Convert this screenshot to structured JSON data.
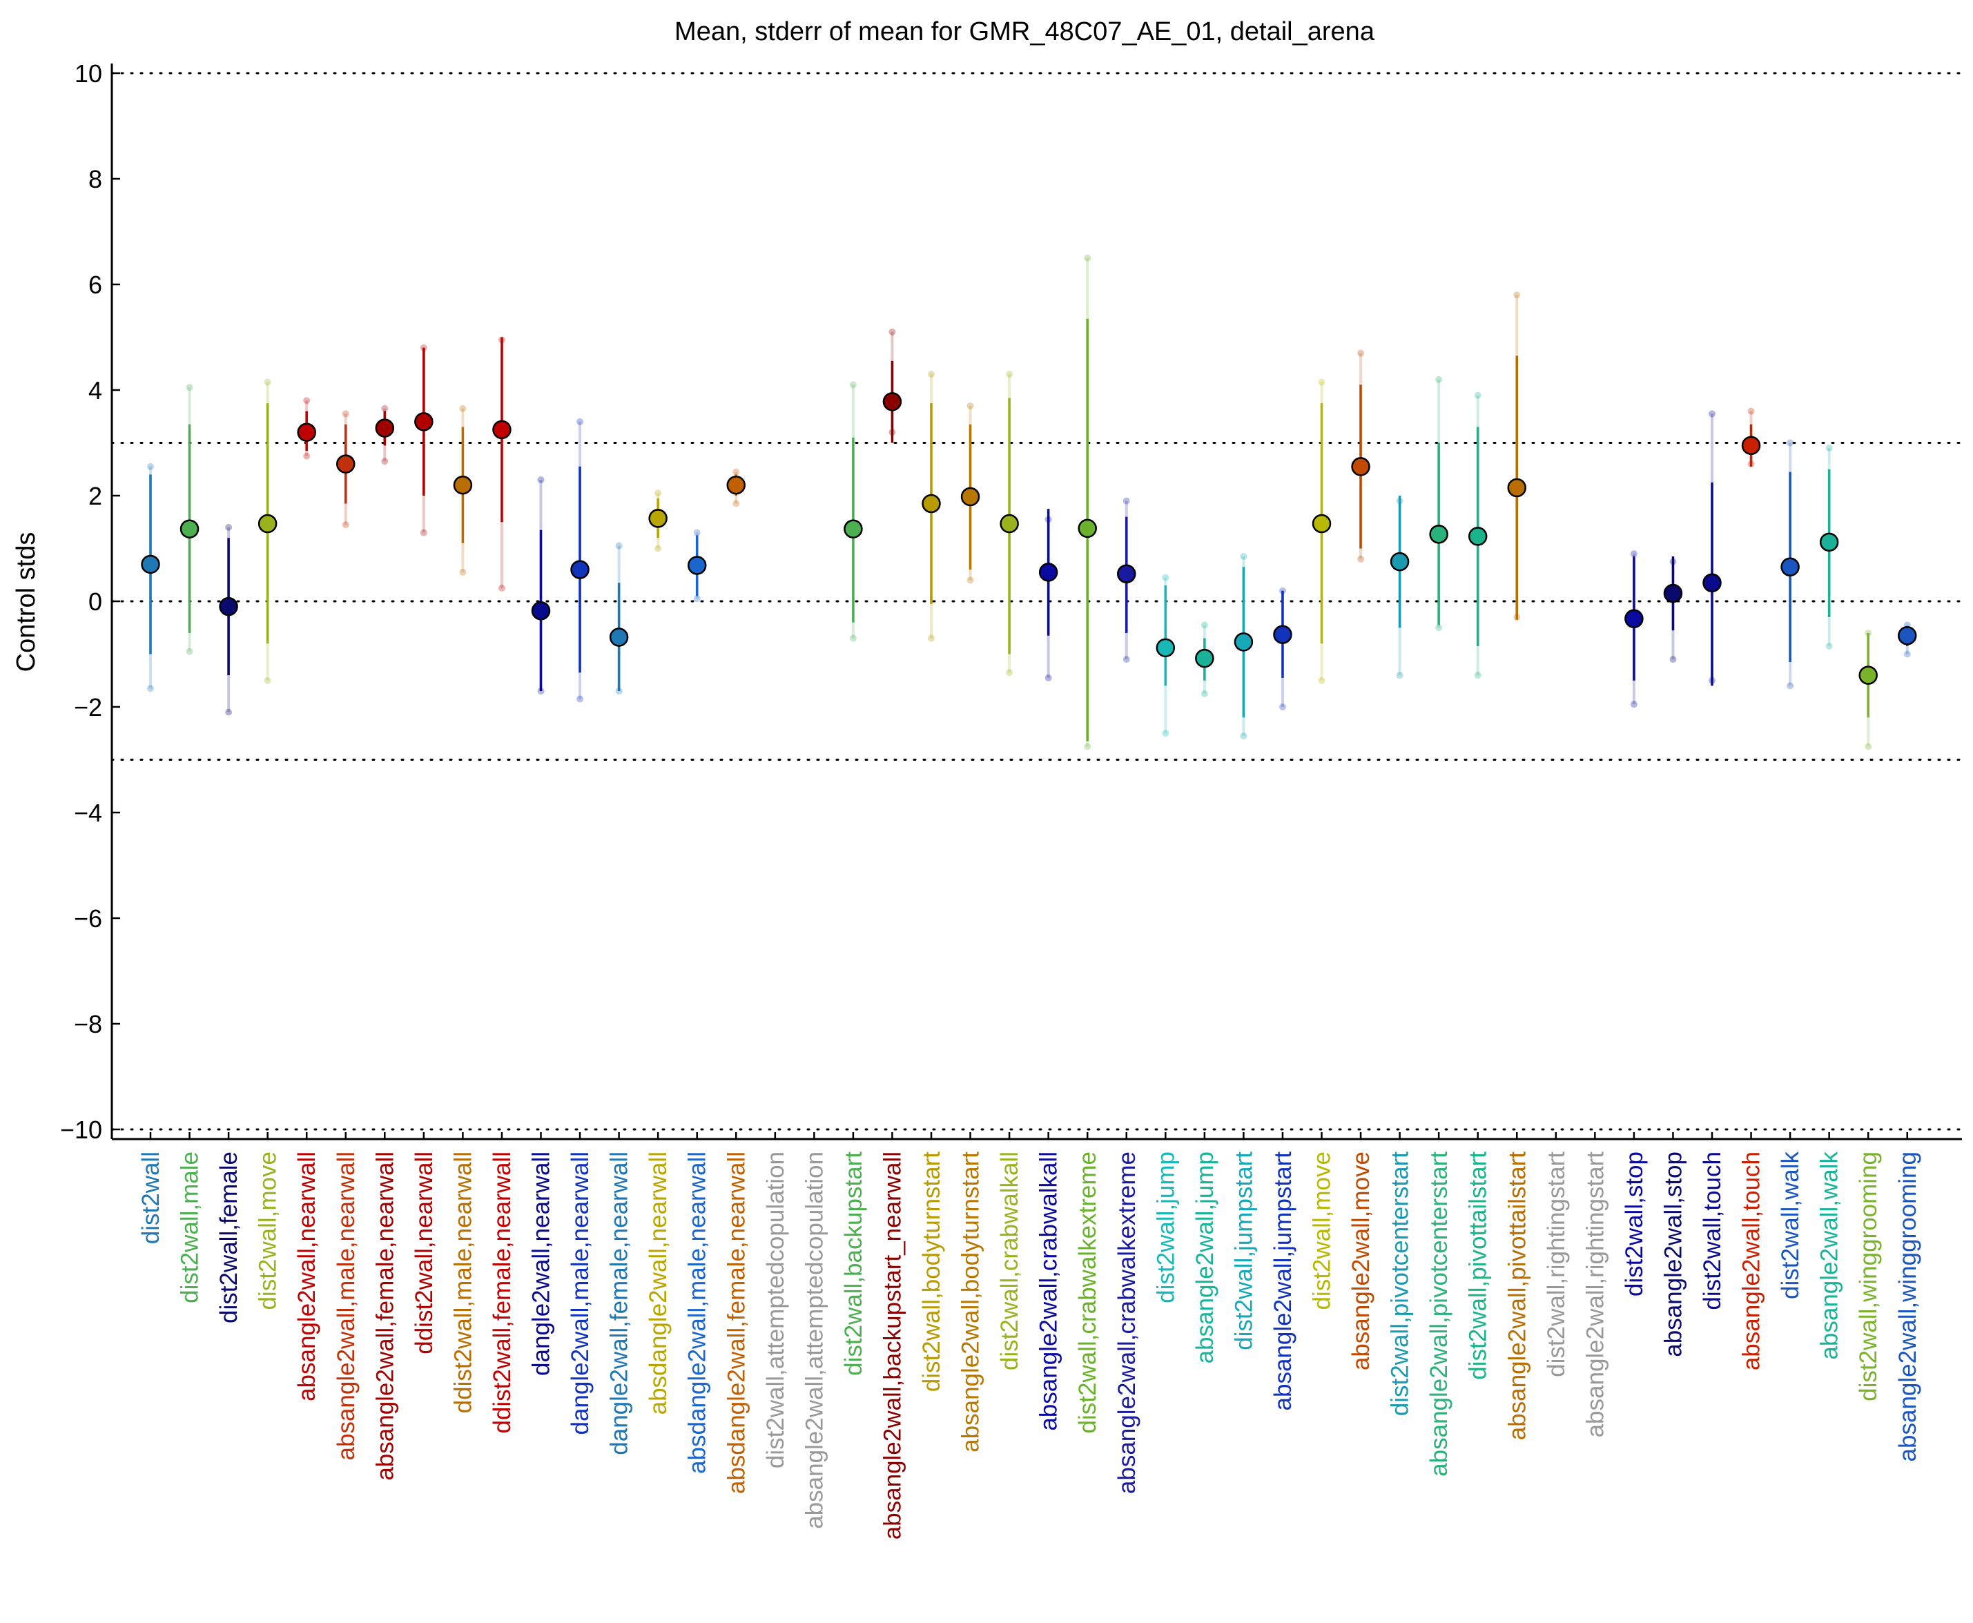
{
  "chart_data": {
    "type": "scatter",
    "title": "Mean, stderr of mean for GMR_48C07_AE_01, detail_arena",
    "xlabel": "",
    "ylabel": "Control stds",
    "ylim": [
      -10,
      10
    ],
    "yticks": [
      -10,
      -8,
      -6,
      -4,
      -2,
      0,
      2,
      4,
      6,
      8,
      10
    ],
    "ytick_labels": [
      "−10",
      "−8",
      "−6",
      "−4",
      "−2",
      "0",
      "2",
      "4",
      "6",
      "8",
      "10"
    ],
    "reference_lines": [
      -10,
      -3,
      0,
      3,
      10
    ],
    "grid": false,
    "legend": "none",
    "points": [
      {
        "label": "dist2wall",
        "color": "#1f77b4",
        "mean": 0.7,
        "err_lo": -1.0,
        "err_hi": 2.4,
        "faint_lo": -1.65,
        "faint_hi": 2.55
      },
      {
        "label": "dist2wall,male",
        "color": "#4caf50",
        "mean": 1.37,
        "err_lo": -0.6,
        "err_hi": 3.35,
        "faint_lo": -0.95,
        "faint_hi": 4.05
      },
      {
        "label": "dist2wall,female",
        "color": "#0a0a6e",
        "mean": -0.1,
        "err_lo": -1.4,
        "err_hi": 1.2,
        "faint_lo": -2.1,
        "faint_hi": 1.4
      },
      {
        "label": "dist2wall,move",
        "color": "#9ab31c",
        "mean": 1.47,
        "err_lo": -0.8,
        "err_hi": 3.75,
        "faint_lo": -1.5,
        "faint_hi": 4.15
      },
      {
        "label": "absangle2wall,nearwall",
        "color": "#c00000",
        "mean": 3.2,
        "err_lo": 2.85,
        "err_hi": 3.6,
        "faint_lo": 2.75,
        "faint_hi": 3.8
      },
      {
        "label": "absangle2wall,male,nearwall",
        "color": "#c0300a",
        "mean": 2.6,
        "err_lo": 1.85,
        "err_hi": 3.35,
        "faint_lo": 1.45,
        "faint_hi": 3.55
      },
      {
        "label": "absangle2wall,female,nearwall",
        "color": "#a00000",
        "mean": 3.28,
        "err_lo": 2.95,
        "err_hi": 3.6,
        "faint_lo": 2.65,
        "faint_hi": 3.65
      },
      {
        "label": "ddist2wall,nearwall",
        "color": "#b00000",
        "mean": 3.4,
        "err_lo": 2.0,
        "err_hi": 4.8,
        "faint_lo": 1.3,
        "faint_hi": 4.8
      },
      {
        "label": "ddist2wall,male,nearwall",
        "color": "#b86e00",
        "mean": 2.2,
        "err_lo": 1.1,
        "err_hi": 3.3,
        "faint_lo": 0.55,
        "faint_hi": 3.65
      },
      {
        "label": "ddist2wall,female,nearwall",
        "color": "#c00000",
        "mean": 3.25,
        "err_lo": 1.5,
        "err_hi": 5.0,
        "faint_lo": 0.25,
        "faint_hi": 4.95
      },
      {
        "label": "dangle2wall,nearwall",
        "color": "#0a0a8c",
        "mean": -0.18,
        "err_lo": -1.7,
        "err_hi": 1.35,
        "faint_lo": -1.7,
        "faint_hi": 2.3
      },
      {
        "label": "dangle2wall,male,nearwall",
        "color": "#1133bb",
        "mean": 0.6,
        "err_lo": -1.35,
        "err_hi": 2.55,
        "faint_lo": -1.85,
        "faint_hi": 3.4
      },
      {
        "label": "dangle2wall,female,nearwall",
        "color": "#1f77b4",
        "mean": -0.68,
        "err_lo": -1.7,
        "err_hi": 0.35,
        "faint_lo": -1.7,
        "faint_hi": 1.05
      },
      {
        "label": "absdangle2wall,nearwall",
        "color": "#b8a600",
        "mean": 1.57,
        "err_lo": 1.2,
        "err_hi": 1.95,
        "faint_lo": 1.0,
        "faint_hi": 2.05
      },
      {
        "label": "absdangle2wall,male,nearwall",
        "color": "#1a66cc",
        "mean": 0.68,
        "err_lo": 0.1,
        "err_hi": 1.25,
        "faint_lo": 0.05,
        "faint_hi": 1.3
      },
      {
        "label": "absdangle2wall,female,nearwall",
        "color": "#c06000",
        "mean": 2.2,
        "err_lo": 2.0,
        "err_hi": 2.4,
        "faint_lo": 1.85,
        "faint_hi": 2.45
      },
      {
        "label": "dist2wall,attemptedcopulation",
        "color": "#999999",
        "mean": null
      },
      {
        "label": "absangle2wall,attemptedcopulation",
        "color": "#999999",
        "mean": null
      },
      {
        "label": "dist2wall,backupstart",
        "color": "#4caf50",
        "mean": 1.37,
        "err_lo": -0.4,
        "err_hi": 3.1,
        "faint_lo": -0.7,
        "faint_hi": 4.1
      },
      {
        "label": "absangle2wall,backupstart_nearwall",
        "color": "#8b0000",
        "mean": 3.78,
        "err_lo": 3.0,
        "err_hi": 4.55,
        "faint_lo": 3.2,
        "faint_hi": 5.1
      },
      {
        "label": "dist2wall,bodyturnstart",
        "color": "#b89b00",
        "mean": 1.85,
        "err_lo": -0.05,
        "err_hi": 3.75,
        "faint_lo": -0.7,
        "faint_hi": 4.3
      },
      {
        "label": "absangle2wall,bodyturnstart",
        "color": "#b87800",
        "mean": 1.98,
        "err_lo": 0.6,
        "err_hi": 3.35,
        "faint_lo": 0.4,
        "faint_hi": 3.7
      },
      {
        "label": "dist2wall,crabwalkall",
        "color": "#9ab31c",
        "mean": 1.47,
        "err_lo": -1.0,
        "err_hi": 3.85,
        "faint_lo": -1.35,
        "faint_hi": 4.3
      },
      {
        "label": "absangle2wall,crabwalkall",
        "color": "#0a0aa0",
        "mean": 0.55,
        "err_lo": -0.65,
        "err_hi": 1.75,
        "faint_lo": -1.45,
        "faint_hi": 1.55
      },
      {
        "label": "dist2wall,crabwalkextreme",
        "color": "#6ab22c",
        "mean": 1.38,
        "err_lo": -2.65,
        "err_hi": 5.35,
        "faint_lo": -2.75,
        "faint_hi": 6.5
      },
      {
        "label": "absangle2wall,crabwalkextreme",
        "color": "#1a1aa0",
        "mean": 0.52,
        "err_lo": -0.6,
        "err_hi": 1.6,
        "faint_lo": -1.1,
        "faint_hi": 1.9
      },
      {
        "label": "dist2wall,jump",
        "color": "#17b8b8",
        "mean": -0.88,
        "err_lo": -1.6,
        "err_hi": 0.3,
        "faint_lo": -2.5,
        "faint_hi": 0.45
      },
      {
        "label": "absangle2wall,jump",
        "color": "#1ab39a",
        "mean": -1.08,
        "err_lo": -1.5,
        "err_hi": -0.7,
        "faint_lo": -1.75,
        "faint_hi": -0.45
      },
      {
        "label": "dist2wall,jumpstart",
        "color": "#17a8b8",
        "mean": -0.77,
        "err_lo": -2.2,
        "err_hi": 0.65,
        "faint_lo": -2.55,
        "faint_hi": 0.85
      },
      {
        "label": "absangle2wall,jumpstart",
        "color": "#1133bb",
        "mean": -0.63,
        "err_lo": -1.45,
        "err_hi": 0.2,
        "faint_lo": -2.0,
        "faint_hi": 0.2
      },
      {
        "label": "dist2wall,move",
        "color": "#b8b800",
        "mean": 1.47,
        "err_lo": -0.8,
        "err_hi": 3.75,
        "faint_lo": -1.5,
        "faint_hi": 4.15
      },
      {
        "label": "absangle2wall,move",
        "color": "#c04a00",
        "mean": 2.55,
        "err_lo": 1.0,
        "err_hi": 4.1,
        "faint_lo": 0.8,
        "faint_hi": 4.7
      },
      {
        "label": "dist2wall,pivotcenterstart",
        "color": "#1a9ab0",
        "mean": 0.75,
        "err_lo": -0.5,
        "err_hi": 2.0,
        "faint_lo": -1.4,
        "faint_hi": 1.9
      },
      {
        "label": "absangle2wall,pivotcenterstart",
        "color": "#2ab27a",
        "mean": 1.27,
        "err_lo": -0.45,
        "err_hi": 3.0,
        "faint_lo": -0.5,
        "faint_hi": 4.2
      },
      {
        "label": "dist2wall,pivottailstart",
        "color": "#1ab38a",
        "mean": 1.23,
        "err_lo": -0.85,
        "err_hi": 3.3,
        "faint_lo": -1.4,
        "faint_hi": 3.9
      },
      {
        "label": "absangle2wall,pivottailstart",
        "color": "#b86e00",
        "mean": 2.15,
        "err_lo": -0.35,
        "err_hi": 4.65,
        "faint_lo": -0.3,
        "faint_hi": 5.8
      },
      {
        "label": "dist2wall,rightingstart",
        "color": "#999999",
        "mean": null
      },
      {
        "label": "absangle2wall,rightingstart",
        "color": "#999999",
        "mean": null
      },
      {
        "label": "dist2wall,stop",
        "color": "#0a0aa0",
        "mean": -0.33,
        "err_lo": -1.5,
        "err_hi": 0.85,
        "faint_lo": -1.95,
        "faint_hi": 0.9
      },
      {
        "label": "absangle2wall,stop",
        "color": "#0a0a6e",
        "mean": 0.15,
        "err_lo": -0.55,
        "err_hi": 0.85,
        "faint_lo": -1.1,
        "faint_hi": 0.75
      },
      {
        "label": "dist2wall,touch",
        "color": "#0a0a8c",
        "mean": 0.35,
        "err_lo": -1.6,
        "err_hi": 2.25,
        "faint_lo": -1.5,
        "faint_hi": 3.55
      },
      {
        "label": "absangle2wall,touch",
        "color": "#c82000",
        "mean": 2.95,
        "err_lo": 2.55,
        "err_hi": 3.35,
        "faint_lo": 2.6,
        "faint_hi": 3.6
      },
      {
        "label": "dist2wall,walk",
        "color": "#1a55c0",
        "mean": 0.65,
        "err_lo": -1.15,
        "err_hi": 2.45,
        "faint_lo": -1.6,
        "faint_hi": 3.0
      },
      {
        "label": "absangle2wall,walk",
        "color": "#1ab39a",
        "mean": 1.12,
        "err_lo": -0.3,
        "err_hi": 2.5,
        "faint_lo": -0.85,
        "faint_hi": 2.9
      },
      {
        "label": "dist2wall,winggrooming",
        "color": "#7ab22c",
        "mean": -1.4,
        "err_lo": -2.2,
        "err_hi": -0.6,
        "faint_lo": -2.75,
        "faint_hi": -0.6
      },
      {
        "label": "absangle2wall,winggrooming",
        "color": "#1a55c0",
        "mean": -0.65,
        "err_lo": -0.85,
        "err_hi": -0.5,
        "faint_lo": -1.0,
        "faint_hi": -0.45
      }
    ]
  }
}
